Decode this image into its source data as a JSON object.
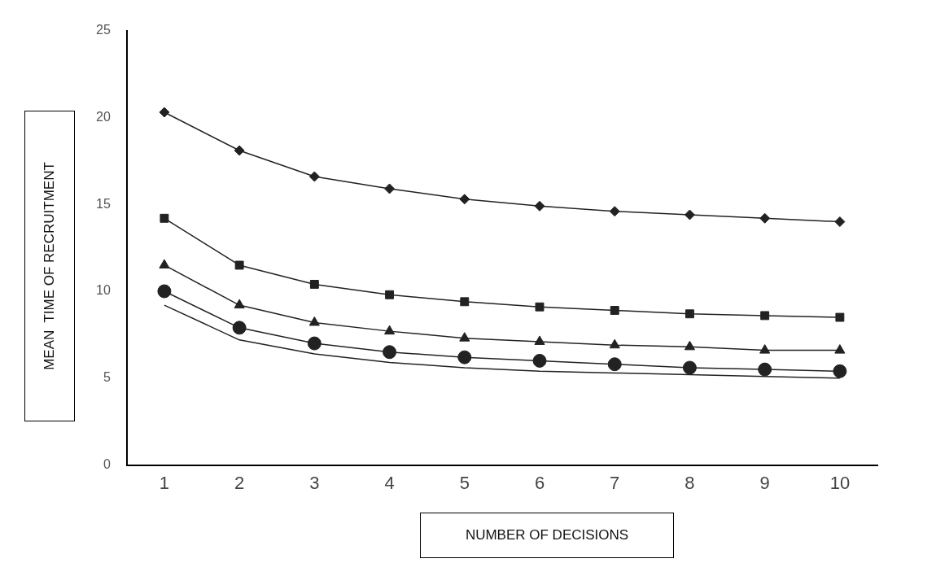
{
  "chart_data": {
    "type": "line",
    "xlabel": "NUMBER OF DECISIONS",
    "ylabel": "MEAN  TIME OF RECRUITMENT",
    "categories": [
      "1",
      "2",
      "3",
      "4",
      "5",
      "6",
      "7",
      "8",
      "9",
      "10"
    ],
    "ylim": [
      0,
      25
    ],
    "yticks": [
      0,
      5,
      10,
      15,
      20,
      25
    ],
    "grid": false,
    "legend": false,
    "series": [
      {
        "color": "#222222",
        "marker": "diamond",
        "values": [
          20.3,
          18.1,
          16.6,
          15.9,
          15.3,
          14.9,
          14.6,
          14.4,
          14.2,
          14.0
        ]
      },
      {
        "color": "#222222",
        "marker": "square",
        "values": [
          14.2,
          11.5,
          10.4,
          9.8,
          9.4,
          9.1,
          8.9,
          8.7,
          8.6,
          8.5
        ]
      },
      {
        "color": "#222222",
        "marker": "triangle",
        "values": [
          11.5,
          9.2,
          8.2,
          7.7,
          7.3,
          7.1,
          6.9,
          6.8,
          6.6,
          6.6
        ]
      },
      {
        "color": "#222222",
        "marker": "circle",
        "values": [
          10.0,
          7.9,
          7.0,
          6.5,
          6.2,
          6.0,
          5.8,
          5.6,
          5.5,
          5.4
        ]
      },
      {
        "color": "#222222",
        "marker": "none",
        "values": [
          9.2,
          7.2,
          6.4,
          5.9,
          5.6,
          5.4,
          5.3,
          5.2,
          5.1,
          5.0
        ]
      }
    ]
  }
}
